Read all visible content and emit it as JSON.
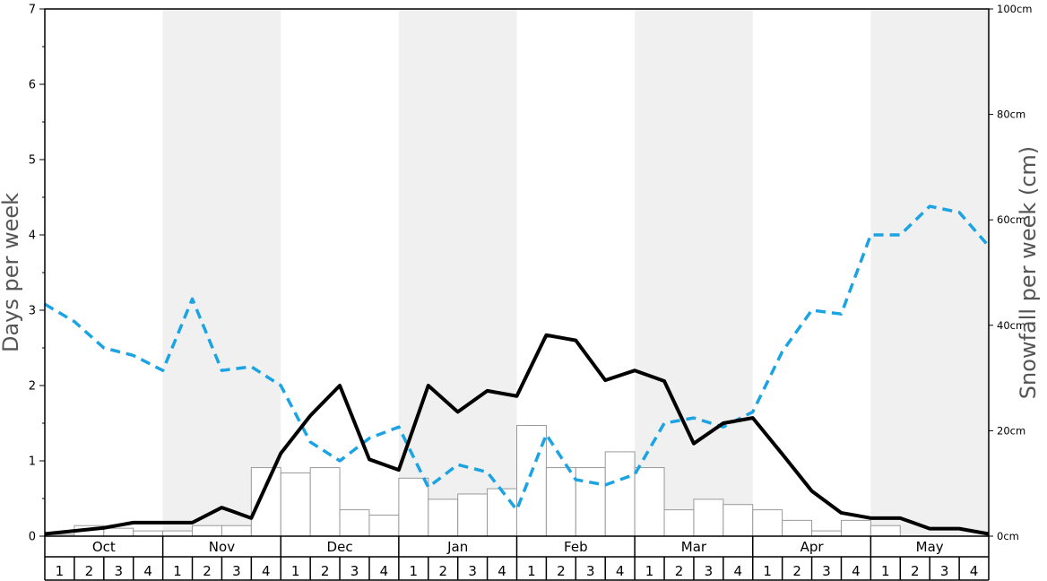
{
  "chart_data": {
    "type": "bar+line",
    "title": "",
    "ylabel": "Days per week",
    "y2label": "Snowfall per week (cm)",
    "ylim": [
      0,
      7
    ],
    "y2lim": [
      0,
      100
    ],
    "y_ticks": [
      "0",
      "1",
      "2",
      "3",
      "4",
      "5",
      "6",
      "7"
    ],
    "y2_ticks": [
      "0cm",
      "20cm",
      "40cm",
      "60cm",
      "80cm",
      "100cm"
    ],
    "months": [
      "Oct",
      "Nov",
      "Dec",
      "Jan",
      "Feb",
      "Mar",
      "Apr",
      "May"
    ],
    "weeks": [
      "1",
      "2",
      "3",
      "4"
    ],
    "shaded_months": [
      "Nov",
      "Jan",
      "Mar",
      "May"
    ],
    "colors": {
      "snowfall_bars_fill": "#ffffff",
      "snowfall_bars_stroke": "#999999",
      "days_line": "#000000",
      "dashed_line": "#1ba3e3",
      "shade": "#f0f0f0"
    },
    "series": [
      {
        "type": "bar",
        "axis": "right",
        "values": [
          0.3,
          2,
          1.5,
          1,
          1,
          2,
          2,
          13,
          12,
          13,
          5,
          4,
          11,
          7,
          8,
          9,
          21,
          13,
          13,
          16,
          13,
          5,
          7,
          6,
          5,
          3,
          1,
          3,
          2,
          0,
          0,
          0
        ]
      },
      {
        "type": "line",
        "axis": "left",
        "values": [
          0.03,
          0.07,
          0.11,
          0.18,
          0.18,
          0.18,
          0.38,
          0.24,
          1.1,
          1.6,
          2.0,
          1.02,
          0.88,
          2.0,
          1.65,
          1.93,
          1.86,
          2.67,
          2.6,
          2.07,
          2.2,
          2.06,
          1.23,
          1.5,
          1.57,
          1.09,
          0.6,
          0.31,
          0.24,
          0.24,
          0.1,
          0.1,
          0.03
        ]
      },
      {
        "type": "line",
        "axis": "left",
        "style": "dashed",
        "values": [
          3.08,
          2.85,
          2.5,
          2.4,
          2.2,
          3.15,
          2.2,
          2.25,
          2.0,
          1.25,
          1.0,
          1.3,
          1.45,
          0.65,
          0.95,
          0.85,
          0.35,
          1.35,
          0.75,
          0.68,
          0.82,
          1.5,
          1.57,
          1.45,
          1.65,
          2.45,
          3.0,
          2.95,
          4.0,
          4.0,
          4.38,
          4.3,
          3.85
        ]
      }
    ]
  }
}
